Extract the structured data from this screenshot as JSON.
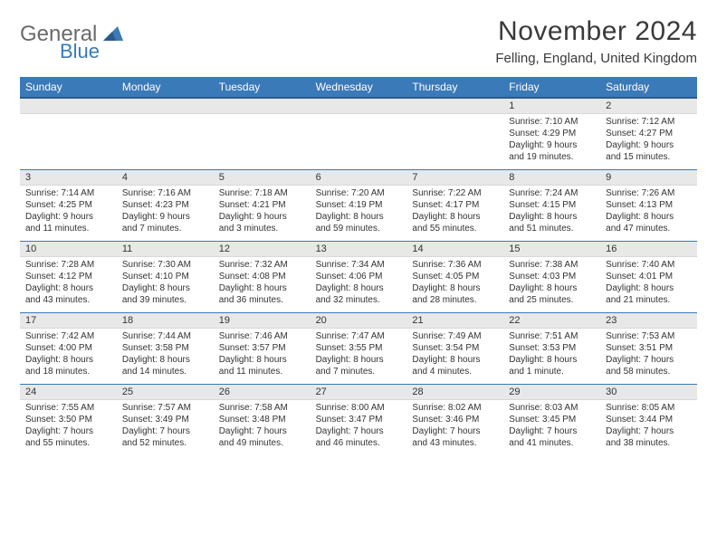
{
  "logo": {
    "general": "General",
    "blue": "Blue"
  },
  "title": "November 2024",
  "location": "Felling, England, United Kingdom",
  "colors": {
    "header_bg": "#3a7ab8",
    "header_border": "#2a5a8a",
    "row_divider": "#3a7ab8",
    "daynum_bg": "#e8e8e8",
    "text": "#333333",
    "logo_gray": "#6a6a6a",
    "logo_blue": "#3a7ab8"
  },
  "dayNames": [
    "Sunday",
    "Monday",
    "Tuesday",
    "Wednesday",
    "Thursday",
    "Friday",
    "Saturday"
  ],
  "weeks": [
    [
      null,
      null,
      null,
      null,
      null,
      {
        "n": "1",
        "sr": "Sunrise: 7:10 AM",
        "ss": "Sunset: 4:29 PM",
        "dl1": "Daylight: 9 hours",
        "dl2": "and 19 minutes."
      },
      {
        "n": "2",
        "sr": "Sunrise: 7:12 AM",
        "ss": "Sunset: 4:27 PM",
        "dl1": "Daylight: 9 hours",
        "dl2": "and 15 minutes."
      }
    ],
    [
      {
        "n": "3",
        "sr": "Sunrise: 7:14 AM",
        "ss": "Sunset: 4:25 PM",
        "dl1": "Daylight: 9 hours",
        "dl2": "and 11 minutes."
      },
      {
        "n": "4",
        "sr": "Sunrise: 7:16 AM",
        "ss": "Sunset: 4:23 PM",
        "dl1": "Daylight: 9 hours",
        "dl2": "and 7 minutes."
      },
      {
        "n": "5",
        "sr": "Sunrise: 7:18 AM",
        "ss": "Sunset: 4:21 PM",
        "dl1": "Daylight: 9 hours",
        "dl2": "and 3 minutes."
      },
      {
        "n": "6",
        "sr": "Sunrise: 7:20 AM",
        "ss": "Sunset: 4:19 PM",
        "dl1": "Daylight: 8 hours",
        "dl2": "and 59 minutes."
      },
      {
        "n": "7",
        "sr": "Sunrise: 7:22 AM",
        "ss": "Sunset: 4:17 PM",
        "dl1": "Daylight: 8 hours",
        "dl2": "and 55 minutes."
      },
      {
        "n": "8",
        "sr": "Sunrise: 7:24 AM",
        "ss": "Sunset: 4:15 PM",
        "dl1": "Daylight: 8 hours",
        "dl2": "and 51 minutes."
      },
      {
        "n": "9",
        "sr": "Sunrise: 7:26 AM",
        "ss": "Sunset: 4:13 PM",
        "dl1": "Daylight: 8 hours",
        "dl2": "and 47 minutes."
      }
    ],
    [
      {
        "n": "10",
        "sr": "Sunrise: 7:28 AM",
        "ss": "Sunset: 4:12 PM",
        "dl1": "Daylight: 8 hours",
        "dl2": "and 43 minutes."
      },
      {
        "n": "11",
        "sr": "Sunrise: 7:30 AM",
        "ss": "Sunset: 4:10 PM",
        "dl1": "Daylight: 8 hours",
        "dl2": "and 39 minutes."
      },
      {
        "n": "12",
        "sr": "Sunrise: 7:32 AM",
        "ss": "Sunset: 4:08 PM",
        "dl1": "Daylight: 8 hours",
        "dl2": "and 36 minutes."
      },
      {
        "n": "13",
        "sr": "Sunrise: 7:34 AM",
        "ss": "Sunset: 4:06 PM",
        "dl1": "Daylight: 8 hours",
        "dl2": "and 32 minutes."
      },
      {
        "n": "14",
        "sr": "Sunrise: 7:36 AM",
        "ss": "Sunset: 4:05 PM",
        "dl1": "Daylight: 8 hours",
        "dl2": "and 28 minutes."
      },
      {
        "n": "15",
        "sr": "Sunrise: 7:38 AM",
        "ss": "Sunset: 4:03 PM",
        "dl1": "Daylight: 8 hours",
        "dl2": "and 25 minutes."
      },
      {
        "n": "16",
        "sr": "Sunrise: 7:40 AM",
        "ss": "Sunset: 4:01 PM",
        "dl1": "Daylight: 8 hours",
        "dl2": "and 21 minutes."
      }
    ],
    [
      {
        "n": "17",
        "sr": "Sunrise: 7:42 AM",
        "ss": "Sunset: 4:00 PM",
        "dl1": "Daylight: 8 hours",
        "dl2": "and 18 minutes."
      },
      {
        "n": "18",
        "sr": "Sunrise: 7:44 AM",
        "ss": "Sunset: 3:58 PM",
        "dl1": "Daylight: 8 hours",
        "dl2": "and 14 minutes."
      },
      {
        "n": "19",
        "sr": "Sunrise: 7:46 AM",
        "ss": "Sunset: 3:57 PM",
        "dl1": "Daylight: 8 hours",
        "dl2": "and 11 minutes."
      },
      {
        "n": "20",
        "sr": "Sunrise: 7:47 AM",
        "ss": "Sunset: 3:55 PM",
        "dl1": "Daylight: 8 hours",
        "dl2": "and 7 minutes."
      },
      {
        "n": "21",
        "sr": "Sunrise: 7:49 AM",
        "ss": "Sunset: 3:54 PM",
        "dl1": "Daylight: 8 hours",
        "dl2": "and 4 minutes."
      },
      {
        "n": "22",
        "sr": "Sunrise: 7:51 AM",
        "ss": "Sunset: 3:53 PM",
        "dl1": "Daylight: 8 hours",
        "dl2": "and 1 minute."
      },
      {
        "n": "23",
        "sr": "Sunrise: 7:53 AM",
        "ss": "Sunset: 3:51 PM",
        "dl1": "Daylight: 7 hours",
        "dl2": "and 58 minutes."
      }
    ],
    [
      {
        "n": "24",
        "sr": "Sunrise: 7:55 AM",
        "ss": "Sunset: 3:50 PM",
        "dl1": "Daylight: 7 hours",
        "dl2": "and 55 minutes."
      },
      {
        "n": "25",
        "sr": "Sunrise: 7:57 AM",
        "ss": "Sunset: 3:49 PM",
        "dl1": "Daylight: 7 hours",
        "dl2": "and 52 minutes."
      },
      {
        "n": "26",
        "sr": "Sunrise: 7:58 AM",
        "ss": "Sunset: 3:48 PM",
        "dl1": "Daylight: 7 hours",
        "dl2": "and 49 minutes."
      },
      {
        "n": "27",
        "sr": "Sunrise: 8:00 AM",
        "ss": "Sunset: 3:47 PM",
        "dl1": "Daylight: 7 hours",
        "dl2": "and 46 minutes."
      },
      {
        "n": "28",
        "sr": "Sunrise: 8:02 AM",
        "ss": "Sunset: 3:46 PM",
        "dl1": "Daylight: 7 hours",
        "dl2": "and 43 minutes."
      },
      {
        "n": "29",
        "sr": "Sunrise: 8:03 AM",
        "ss": "Sunset: 3:45 PM",
        "dl1": "Daylight: 7 hours",
        "dl2": "and 41 minutes."
      },
      {
        "n": "30",
        "sr": "Sunrise: 8:05 AM",
        "ss": "Sunset: 3:44 PM",
        "dl1": "Daylight: 7 hours",
        "dl2": "and 38 minutes."
      }
    ]
  ]
}
